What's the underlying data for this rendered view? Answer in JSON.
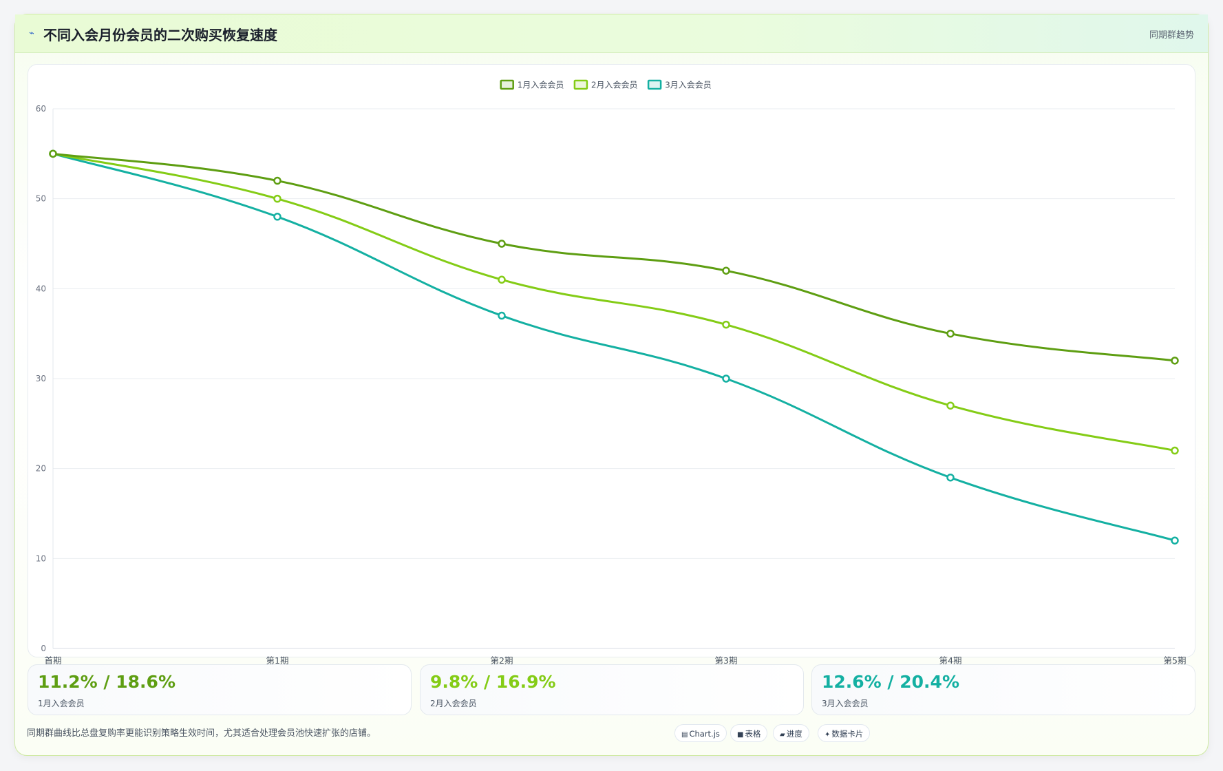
{
  "header": {
    "icon": "trend-icon",
    "title": "不同入会月份会员的二次购买恢复速度",
    "tag": "同期群趋势"
  },
  "chart_data": {
    "type": "line",
    "categories": [
      "首期",
      "第1期",
      "第2期",
      "第3期",
      "第4期",
      "第5期"
    ],
    "series": [
      {
        "name": "1月入会会员",
        "color": "#5e9e12",
        "values": [
          55,
          52,
          45,
          42,
          35,
          32
        ]
      },
      {
        "name": "2月入会会员",
        "color": "#84cc16",
        "values": [
          55,
          50,
          41,
          36,
          27,
          22
        ]
      },
      {
        "name": "3月入会会员",
        "color": "#14b0a2",
        "values": [
          55,
          48,
          37,
          30,
          19,
          12
        ]
      }
    ],
    "ylim": [
      0,
      60
    ],
    "yticks": [
      "0",
      "10",
      "20",
      "30",
      "40",
      "50",
      "60"
    ],
    "grid": true,
    "legend": "top-center",
    "smooth": true
  },
  "stats": [
    {
      "value": "11.2% / 18.6%",
      "label": "1月入会会员",
      "color": "#5e9e12"
    },
    {
      "value": "9.8% / 16.9%",
      "label": "2月入会会员",
      "color": "#84cc16"
    },
    {
      "value": "12.6% / 20.4%",
      "label": "3月入会会员",
      "color": "#14b0a2"
    }
  ],
  "footnote": "同期群曲线比总盘复购率更能识别策略生效时间，尤其适合处理会员池快速扩张的店铺。",
  "pills": [
    {
      "icon": "chart-icon",
      "glyph": "▤",
      "label": "Chart.js"
    },
    {
      "icon": "table-icon",
      "glyph": "■",
      "label": "表格"
    },
    {
      "icon": "progress-icon",
      "glyph": "▰",
      "label": "进度"
    },
    {
      "icon": "data-card-icon",
      "glyph": "✦",
      "label": "数据卡片"
    }
  ]
}
